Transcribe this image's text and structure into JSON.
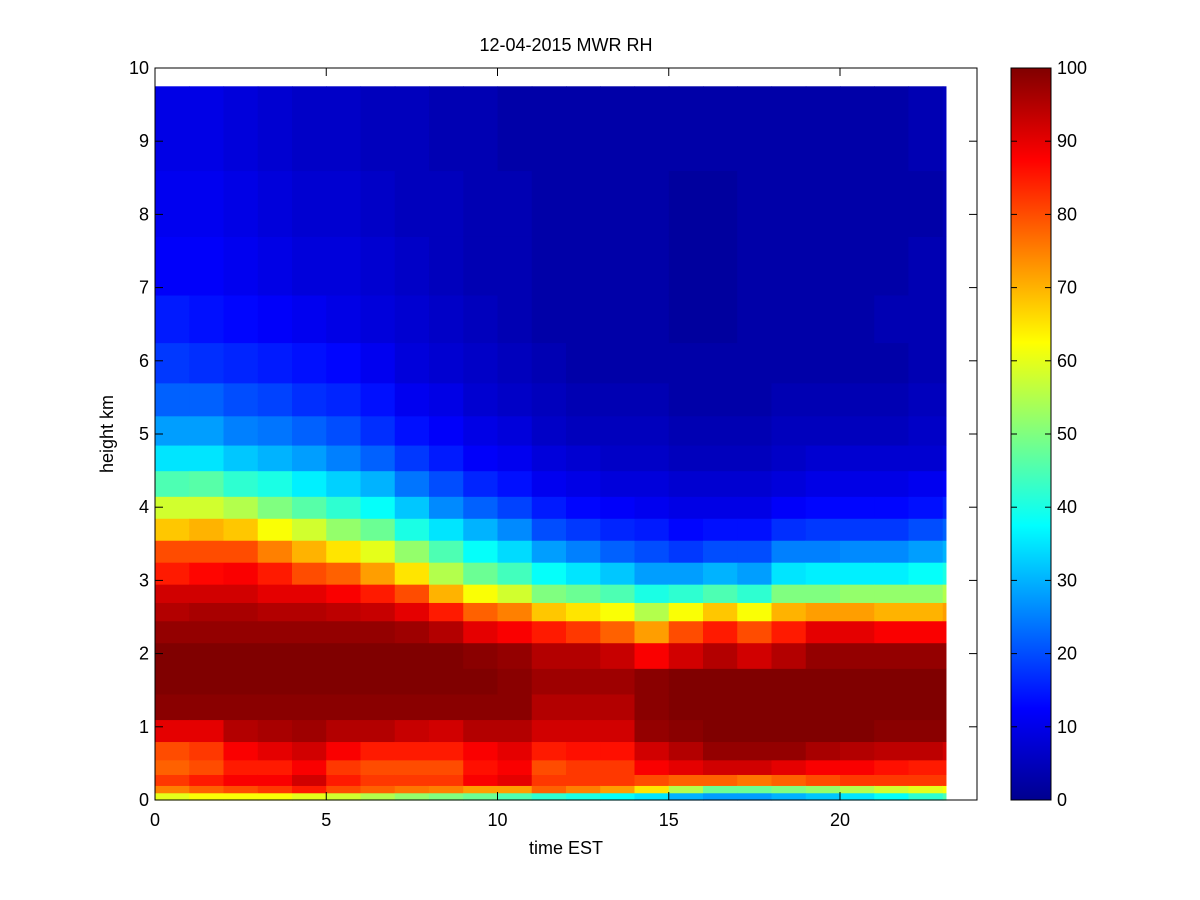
{
  "chart_data": {
    "type": "heatmap",
    "title": "12-04-2015 MWR RH",
    "xlabel": "time EST",
    "ylabel": "height km",
    "xlim": [
      0,
      24
    ],
    "ylim": [
      0,
      10
    ],
    "x_ticks": [
      "0",
      "5",
      "10",
      "15",
      "20"
    ],
    "y_ticks": [
      "0",
      "1",
      "2",
      "3",
      "4",
      "5",
      "6",
      "7",
      "8",
      "9",
      "10"
    ],
    "colorbar": {
      "colormap": "jet",
      "range": [
        0,
        100
      ],
      "ticks": [
        "0",
        "10",
        "20",
        "30",
        "40",
        "50",
        "60",
        "70",
        "80",
        "90",
        "100"
      ]
    },
    "grid": false,
    "legend": "none",
    "time_hours": [
      0,
      1,
      2,
      3,
      4,
      5,
      6,
      7,
      8,
      9,
      10,
      11,
      12,
      13,
      14,
      15,
      16,
      17,
      18,
      19,
      20,
      21,
      22,
      23
    ],
    "height_km_top": 9.75,
    "heights_km": [
      0.1,
      0.2,
      0.35,
      0.55,
      0.8,
      1.1,
      1.45,
      1.8,
      2.15,
      2.45,
      2.7,
      2.95,
      3.25,
      3.55,
      3.85,
      4.15,
      4.5,
      4.85,
      5.25,
      5.7,
      6.25,
      6.9,
      7.7,
      8.6,
      9.75
    ],
    "rh_percent": [
      [
        60,
        75,
        82,
        78,
        80,
        90,
        99,
        100,
        100,
        98,
        95,
        92,
        85,
        80,
        68,
        58,
        45,
        35,
        28,
        22,
        18,
        15,
        12,
        11,
        10
      ],
      [
        62,
        78,
        85,
        80,
        82,
        90,
        99,
        100,
        100,
        98,
        96,
        92,
        87,
        80,
        70,
        58,
        46,
        35,
        28,
        22,
        17,
        14,
        12,
        11,
        10
      ],
      [
        62,
        80,
        88,
        85,
        88,
        95,
        99,
        100,
        100,
        98,
        96,
        92,
        88,
        80,
        68,
        55,
        42,
        32,
        25,
        20,
        16,
        13,
        11,
        10,
        9
      ],
      [
        62,
        82,
        88,
        85,
        90,
        96,
        99,
        100,
        100,
        98,
        95,
        90,
        85,
        75,
        62,
        50,
        40,
        30,
        24,
        19,
        15,
        12,
        10,
        9,
        8
      ],
      [
        60,
        85,
        92,
        88,
        92,
        97,
        99,
        100,
        100,
        98,
        95,
        90,
        80,
        70,
        58,
        46,
        36,
        28,
        22,
        17,
        14,
        11,
        9,
        8,
        7
      ],
      [
        58,
        80,
        85,
        82,
        88,
        95,
        99,
        100,
        100,
        98,
        94,
        88,
        78,
        65,
        52,
        42,
        33,
        25,
        20,
        16,
        13,
        10,
        9,
        8,
        7
      ],
      [
        55,
        78,
        82,
        80,
        85,
        95,
        99,
        100,
        100,
        98,
        93,
        85,
        72,
        60,
        48,
        38,
        30,
        22,
        17,
        14,
        11,
        9,
        8,
        7,
        6
      ],
      [
        52,
        76,
        82,
        80,
        85,
        93,
        99,
        100,
        100,
        97,
        90,
        80,
        65,
        52,
        40,
        32,
        24,
        18,
        14,
        11,
        9,
        8,
        7,
        6,
        6
      ],
      [
        50,
        75,
        82,
        80,
        85,
        92,
        99,
        100,
        100,
        95,
        85,
        70,
        55,
        45,
        35,
        26,
        20,
        15,
        12,
        10,
        8,
        7,
        6,
        6,
        5
      ],
      [
        48,
        72,
        88,
        86,
        88,
        95,
        99,
        100,
        99,
        90,
        78,
        62,
        48,
        38,
        30,
        22,
        16,
        12,
        10,
        8,
        7,
        6,
        5,
        5,
        5
      ],
      [
        45,
        72,
        90,
        88,
        90,
        95,
        99,
        99,
        98,
        88,
        75,
        58,
        44,
        34,
        26,
        19,
        14,
        11,
        9,
        7,
        6,
        5,
        5,
        5,
        4
      ],
      [
        42,
        78,
        82,
        80,
        85,
        92,
        95,
        97,
        95,
        85,
        68,
        50,
        38,
        28,
        20,
        15,
        11,
        9,
        7,
        6,
        5,
        4,
        4,
        4,
        4
      ],
      [
        40,
        75,
        82,
        82,
        86,
        92,
        95,
        97,
        95,
        82,
        65,
        48,
        35,
        25,
        18,
        13,
        10,
        8,
        6,
        5,
        4,
        4,
        4,
        4,
        4
      ],
      [
        38,
        72,
        82,
        82,
        86,
        92,
        95,
        97,
        93,
        78,
        62,
        45,
        32,
        22,
        16,
        12,
        9,
        7,
        6,
        5,
        4,
        4,
        4,
        4,
        4
      ],
      [
        35,
        65,
        80,
        88,
        92,
        98,
        99,
        99,
        88,
        72,
        55,
        40,
        28,
        20,
        15,
        11,
        9,
        7,
        6,
        5,
        4,
        4,
        4,
        4,
        4
      ],
      [
        30,
        55,
        78,
        90,
        95,
        99,
        100,
        100,
        92,
        80,
        62,
        42,
        28,
        18,
        13,
        10,
        8,
        6,
        5,
        4,
        4,
        3,
        3,
        3,
        4
      ],
      [
        28,
        48,
        78,
        92,
        98,
        100,
        100,
        100,
        95,
        85,
        68,
        45,
        30,
        20,
        14,
        10,
        8,
        6,
        5,
        4,
        4,
        3,
        3,
        3,
        4
      ],
      [
        28,
        48,
        76,
        92,
        98,
        100,
        100,
        100,
        92,
        80,
        62,
        42,
        28,
        20,
        14,
        10,
        8,
        6,
        5,
        4,
        4,
        4,
        4,
        4,
        4
      ],
      [
        30,
        50,
        78,
        90,
        98,
        100,
        100,
        100,
        95,
        85,
        70,
        50,
        35,
        25,
        17,
        12,
        9,
        7,
        6,
        5,
        4,
        4,
        4,
        4,
        4
      ],
      [
        32,
        52,
        80,
        88,
        96,
        100,
        100,
        100,
        98,
        90,
        72,
        50,
        36,
        25,
        18,
        13,
        10,
        8,
        6,
        5,
        4,
        4,
        4,
        4,
        4
      ],
      [
        35,
        55,
        82,
        88,
        95,
        100,
        100,
        100,
        98,
        90,
        72,
        52,
        36,
        26,
        18,
        13,
        10,
        8,
        6,
        5,
        4,
        4,
        4,
        4,
        4
      ],
      [
        38,
        58,
        82,
        86,
        94,
        99,
        100,
        100,
        98,
        88,
        70,
        52,
        36,
        26,
        18,
        13,
        10,
        8,
        6,
        5,
        4,
        5,
        4,
        4,
        4
      ],
      [
        42,
        60,
        82,
        85,
        94,
        99,
        100,
        100,
        98,
        88,
        70,
        52,
        38,
        28,
        20,
        14,
        11,
        8,
        7,
        6,
        5,
        5,
        5,
        4,
        5
      ],
      [
        45,
        62,
        82,
        85,
        92,
        99,
        100,
        100,
        98,
        88,
        72,
        55,
        40,
        30,
        22,
        16,
        12,
        9,
        7,
        6,
        5,
        5,
        5,
        5,
        6
      ]
    ]
  }
}
